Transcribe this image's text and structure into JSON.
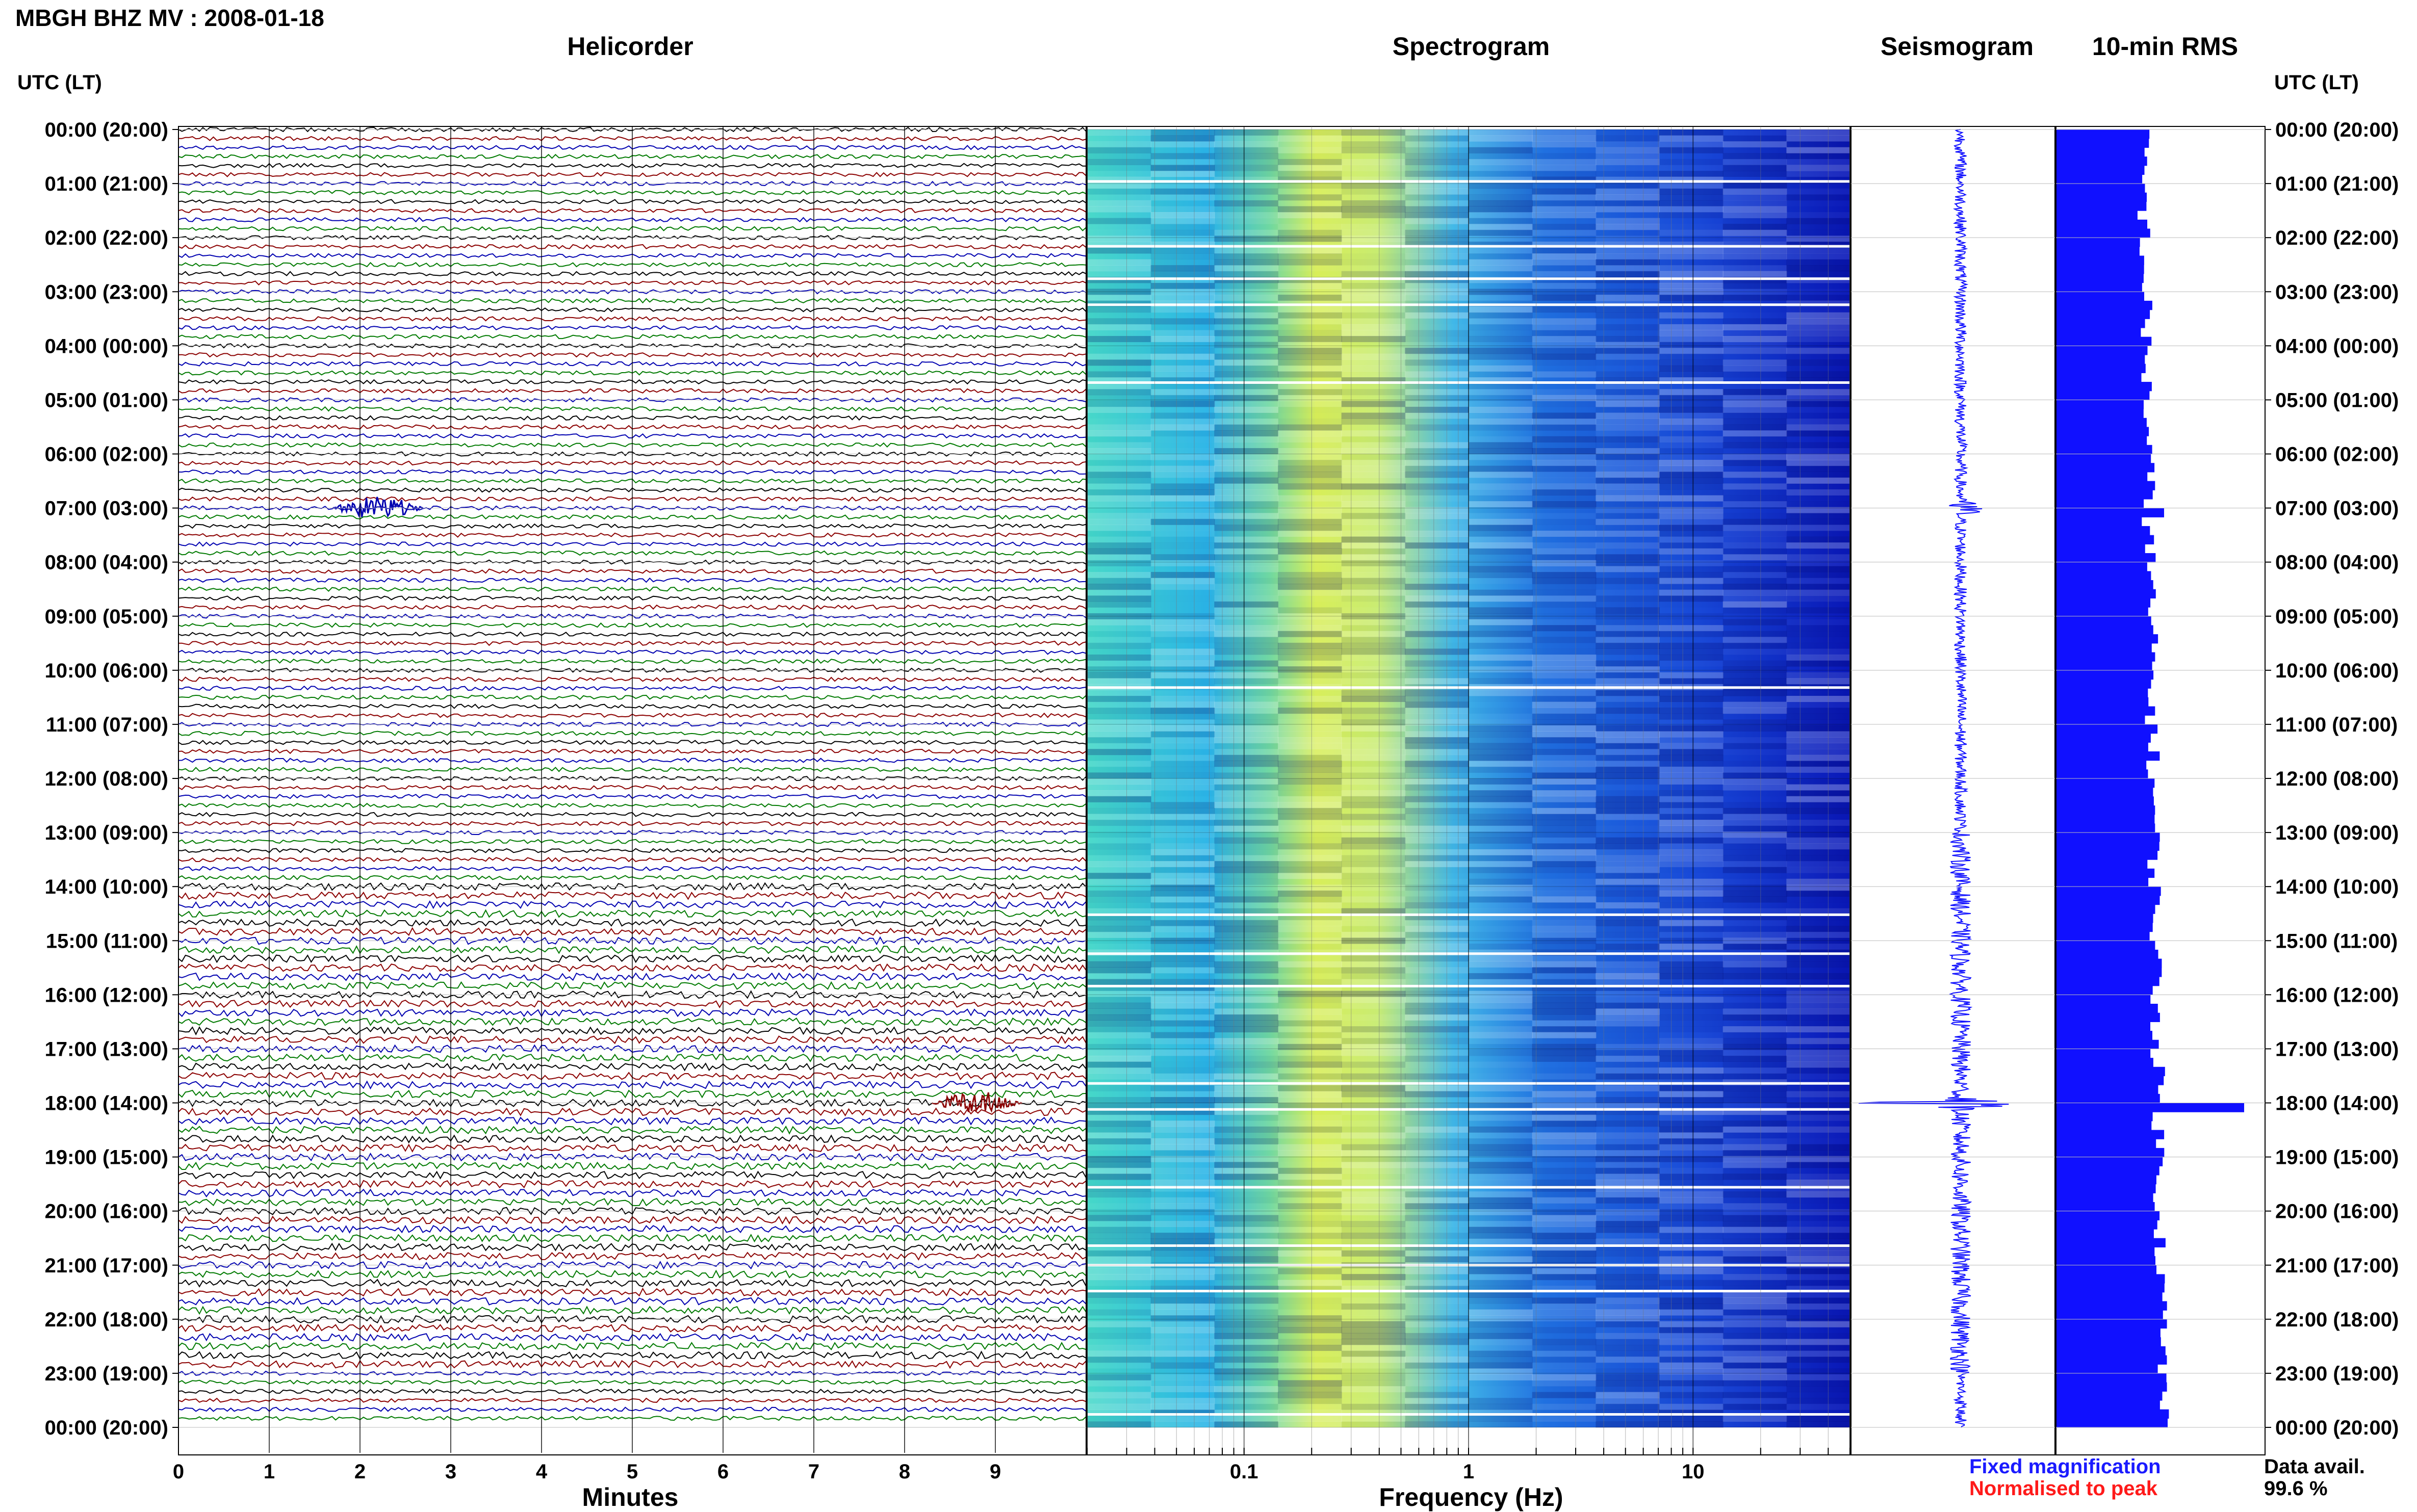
{
  "header": {
    "title": "MBGH BHZ MV : 2008-01-18"
  },
  "panels": {
    "helicorder": "Helicorder",
    "spectrogram": "Spectrogram",
    "seismogram": "Seismogram",
    "rms": "10-min RMS"
  },
  "utc_header_left": "UTC (LT)",
  "utc_header_right": "UTC (LT)",
  "legend": {
    "fixed": "Fixed magnification",
    "normalised": "Normalised to peak",
    "fixed_color": "#1a1aff",
    "normalised_color": "#ff1a1a"
  },
  "data_avail": {
    "label": "Data avail.",
    "value": "99.6 %"
  },
  "colors": {
    "trace_cycle": [
      "#000000",
      "#8b0000",
      "#0000b0",
      "#007a00"
    ],
    "rms_bar": "#1010ff",
    "spectrogram_low": "#30c8e0",
    "spectrogram_mid": "#e8f040",
    "spectrogram_high": "#1020d0"
  },
  "chart_data": [
    {
      "type": "line",
      "name": "helicorder",
      "xlabel": "Minutes",
      "x_ticks": [
        "0",
        "1",
        "2",
        "3",
        "4",
        "5",
        "6",
        "7",
        "8",
        "9"
      ],
      "xlim": [
        0,
        10
      ],
      "y_ticks": [
        "00:00 (20:00)",
        "01:00 (21:00)",
        "02:00 (22:00)",
        "03:00 (23:00)",
        "04:00 (00:00)",
        "05:00 (01:00)",
        "06:00 (02:00)",
        "07:00 (03:00)",
        "08:00 (04:00)",
        "09:00 (05:00)",
        "10:00 (06:00)",
        "11:00 (07:00)",
        "12:00 (08:00)",
        "13:00 (09:00)",
        "14:00 (10:00)",
        "15:00 (11:00)",
        "16:00 (12:00)",
        "17:00 (13:00)",
        "18:00 (14:00)",
        "19:00 (15:00)",
        "20:00 (16:00)",
        "21:00 (17:00)",
        "22:00 (18:00)",
        "23:00 (19:00)",
        "00:00 (20:00)"
      ],
      "traces_per_hour": 6,
      "events": [
        {
          "utc": "07:00",
          "minute_start": 1.7,
          "minute_end": 2.7,
          "color": "#0000b0"
        },
        {
          "utc": "18:00",
          "minute_start": 8.3,
          "minute_end": 9.3,
          "color": "#8b0000"
        }
      ]
    },
    {
      "type": "heatmap",
      "name": "spectrogram",
      "xlabel": "Frequency (Hz)",
      "x_scale": "log",
      "x_ticks": [
        "0.1",
        "1",
        "10"
      ],
      "xlim": [
        0.02,
        50
      ]
    },
    {
      "type": "line",
      "name": "seismogram",
      "peaks": [
        {
          "utc": "07:00",
          "amplitude": 0.4
        },
        {
          "utc": "18:00",
          "amplitude": 1.0
        }
      ]
    },
    {
      "type": "bar",
      "name": "rms",
      "orientation": "horizontal",
      "peaks": [
        {
          "utc": "07:00",
          "value": 0.62
        },
        {
          "utc": "18:00",
          "value": 1.0
        }
      ]
    }
  ]
}
